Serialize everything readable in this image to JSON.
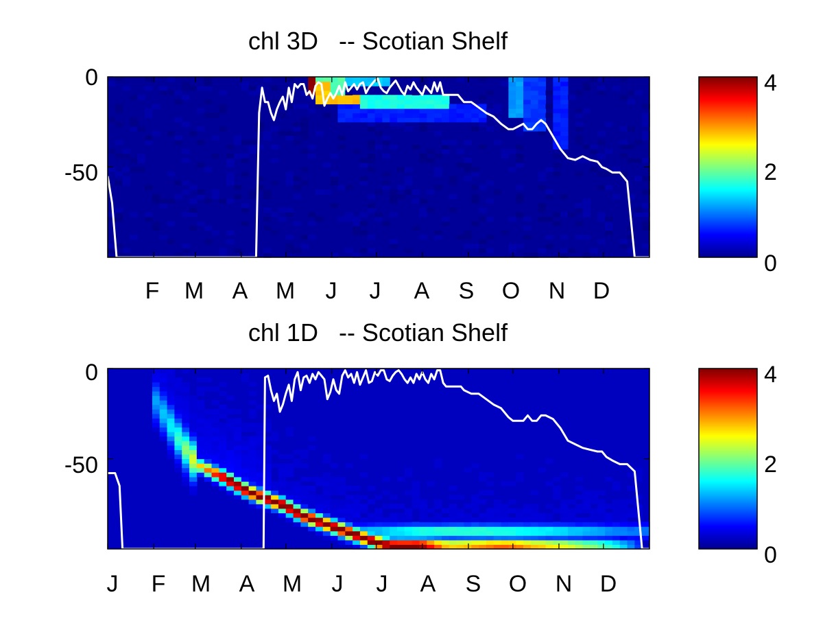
{
  "charts": [
    {
      "type": "heatmap",
      "title": "chl 3D   -- Scotian Shelf",
      "y_ticks": [
        "0",
        "-50"
      ],
      "x_tick_labels": [
        "F",
        "M",
        "A",
        "M",
        "J",
        "J",
        "A",
        "S",
        "O",
        "N",
        "D"
      ],
      "colorbar_ticks": [
        "0",
        "2",
        "4"
      ]
    },
    {
      "type": "heatmap",
      "title": "chl 1D   -- Scotian Shelf",
      "y_ticks": [
        "0",
        "-50"
      ],
      "x_tick_labels": [
        "J",
        "F",
        "M",
        "A",
        "M",
        "J",
        "J",
        "A",
        "S",
        "O",
        "N",
        "D"
      ],
      "colorbar_ticks": [
        "0",
        "2",
        "4"
      ]
    }
  ],
  "chart_data": [
    {
      "type": "heatmap",
      "title": "chl 3D   -- Scotian Shelf",
      "xlabel": "",
      "ylabel": "",
      "xlim_days": [
        0,
        365
      ],
      "ylim_depth": [
        -100,
        0
      ],
      "colorbar": {
        "colormap": "jet",
        "range": [
          0,
          4
        ],
        "ticks": [
          0,
          2,
          4
        ]
      },
      "x_tick_labels": [
        "F",
        "M",
        "A",
        "M",
        "J",
        "J",
        "A",
        "S",
        "O",
        "N",
        "D"
      ],
      "x_tick_days": [
        31,
        59,
        90,
        120,
        151,
        181,
        212,
        243,
        273,
        304,
        334
      ],
      "y_ticks": [
        0,
        -50
      ],
      "background_value": 0.1,
      "hotspots": [
        {
          "day": [
            133,
            142
          ],
          "depth": [
            -10,
            0
          ],
          "value": 4
        },
        {
          "day": [
            142,
            150
          ],
          "depth": [
            -14,
            -3
          ],
          "value": 2.7
        },
        {
          "day": [
            150,
            172
          ],
          "depth": [
            -16,
            -10
          ],
          "value": 2.8
        },
        {
          "day": [
            135,
            158
          ],
          "depth": [
            -10,
            0
          ],
          "value": 1.8
        },
        {
          "day": [
            158,
            190
          ],
          "depth": [
            -6,
            0
          ],
          "value": 1.3
        },
        {
          "day": [
            170,
            230
          ],
          "depth": [
            -18,
            -11
          ],
          "value": 1.6
        },
        {
          "day": [
            155,
            255
          ],
          "depth": [
            -24,
            -16
          ],
          "value": 0.6
        },
        {
          "day": [
            270,
            282
          ],
          "depth": [
            -22,
            0
          ],
          "value": 1.1
        },
        {
          "day": [
            282,
            295
          ],
          "depth": [
            -30,
            0
          ],
          "value": 0.7
        },
        {
          "day": [
            300,
            312
          ],
          "depth": [
            -40,
            0
          ],
          "value": 0.6
        }
      ],
      "mixed_layer_depth": {
        "day": [
          0,
          3,
          6,
          100,
          102,
          104,
          106,
          108,
          110,
          112,
          114,
          116,
          118,
          120,
          122,
          124,
          126,
          128,
          130,
          132,
          134,
          136,
          138,
          140,
          142,
          144,
          146,
          148,
          150,
          152,
          154,
          156,
          158,
          160,
          162,
          164,
          166,
          168,
          170,
          172,
          174,
          176,
          178,
          180,
          182,
          184,
          186,
          188,
          190,
          192,
          194,
          196,
          198,
          200,
          202,
          204,
          206,
          208,
          210,
          212,
          214,
          216,
          218,
          220,
          222,
          224,
          226,
          228,
          230,
          232,
          234,
          236,
          238,
          240,
          245,
          250,
          255,
          260,
          265,
          270,
          273,
          280,
          283,
          286,
          289,
          292,
          295,
          300,
          305,
          310,
          315,
          320,
          325,
          330,
          333,
          336,
          340,
          345,
          350,
          355,
          360,
          362,
          365
        ],
        "depth": [
          -55,
          -70,
          -100,
          -100,
          -20,
          -6,
          -14,
          -14,
          -20,
          -24,
          -18,
          -14,
          -11,
          -18,
          -6,
          -14,
          -4,
          -6,
          -4,
          -4,
          -10,
          -8,
          -12,
          -5,
          -3,
          -4,
          -16,
          -12,
          -9,
          -12,
          -9,
          -5,
          -10,
          -3,
          -8,
          -6,
          -4,
          -7,
          -4,
          -3,
          -9,
          -6,
          -4,
          -2,
          -1,
          -6,
          -8,
          -9,
          -6,
          -4,
          -2,
          -5,
          -8,
          -10,
          -5,
          -7,
          -3,
          -6,
          -8,
          -10,
          -5,
          -7,
          -9,
          -3,
          -8,
          -3,
          -10,
          -10,
          -10,
          -10,
          -10,
          -10,
          -12,
          -14,
          -14,
          -17,
          -20,
          -22,
          -26,
          -29,
          -29,
          -26,
          -29,
          -29,
          -26,
          -24,
          -26,
          -33,
          -40,
          -45,
          -46,
          -44,
          -46,
          -47,
          -50,
          -51,
          -53,
          -53,
          -58,
          -100,
          -100,
          -100,
          -100
        ]
      }
    },
    {
      "type": "heatmap",
      "title": "chl 1D   -- Scotian Shelf",
      "xlabel": "",
      "ylabel": "",
      "xlim_days": [
        0,
        365
      ],
      "ylim_depth": [
        -100,
        0
      ],
      "colorbar": {
        "colormap": "jet",
        "range": [
          0,
          4
        ],
        "ticks": [
          0,
          2,
          4
        ]
      },
      "x_tick_labels": [
        "J",
        "F",
        "M",
        "A",
        "M",
        "J",
        "J",
        "A",
        "S",
        "O",
        "N",
        "D"
      ],
      "x_tick_days": [
        0,
        31,
        59,
        90,
        120,
        151,
        181,
        212,
        243,
        273,
        304,
        334
      ],
      "y_ticks": [
        0,
        -50
      ],
      "background_value": 0.25,
      "max_band": {
        "day": [
          30,
          40,
          50,
          60,
          70,
          80,
          90,
          100,
          110,
          120,
          130,
          140,
          150,
          160,
          170,
          180,
          190,
          200,
          210,
          220,
          230,
          240,
          250,
          260,
          270,
          280,
          290,
          300,
          310,
          320,
          330,
          340,
          350,
          358
        ],
        "depth": [
          -15,
          -28,
          -42,
          -53,
          -57,
          -61,
          -66,
          -70,
          -73,
          -76,
          -81,
          -84,
          -87,
          -90,
          -93,
          -96,
          -98,
          -98,
          -98,
          -98,
          -98,
          -98,
          -98,
          -98,
          -98,
          -98,
          -98,
          -98,
          -98,
          -98,
          -98,
          -98,
          -98,
          -98
        ],
        "value": [
          0.8,
          1.1,
          1.6,
          2.3,
          3.0,
          4.0,
          4.0,
          4.0,
          4.0,
          4.0,
          4.0,
          4.0,
          4.0,
          4.0,
          4.0,
          4.0,
          4.0,
          4.0,
          4.0,
          3.2,
          2.5,
          2.6,
          2.8,
          3.0,
          3.0,
          2.8,
          2.6,
          2.4,
          2.3,
          2.0,
          1.8,
          1.5,
          1.0,
          0.5
        ]
      },
      "secondary_band": {
        "day": [
          170,
          190,
          210,
          230,
          250,
          270,
          290,
          310,
          330,
          350
        ],
        "depth": [
          -90,
          -90,
          -90,
          -90,
          -90,
          -90,
          -90,
          -90,
          -90,
          -90
        ],
        "value": [
          1.0,
          1.2,
          1.5,
          1.6,
          1.6,
          1.5,
          1.4,
          1.2,
          1.0,
          0.8
        ]
      },
      "mixed_layer_depth": {
        "day": [
          0,
          5,
          8,
          10,
          105,
          106,
          108,
          110,
          112,
          114,
          116,
          118,
          120,
          122,
          124,
          126,
          128,
          130,
          132,
          134,
          136,
          138,
          140,
          142,
          144,
          146,
          148,
          150,
          152,
          154,
          156,
          158,
          160,
          162,
          164,
          166,
          168,
          170,
          172,
          174,
          176,
          178,
          180,
          182,
          184,
          186,
          188,
          190,
          192,
          194,
          196,
          198,
          200,
          202,
          204,
          206,
          208,
          210,
          212,
          214,
          216,
          218,
          220,
          222,
          224,
          226,
          228,
          230,
          232,
          234,
          236,
          238,
          240,
          245,
          250,
          255,
          260,
          265,
          270,
          273,
          280,
          283,
          286,
          289,
          292,
          295,
          300,
          305,
          310,
          315,
          320,
          325,
          330,
          333,
          336,
          340,
          345,
          350,
          355,
          360,
          362,
          365
        ],
        "depth": [
          -58,
          -58,
          -65,
          -100,
          -100,
          -5,
          -4,
          -12,
          -18,
          -14,
          -24,
          -20,
          -14,
          -9,
          -18,
          -6,
          -2,
          -12,
          -5,
          -4,
          -8,
          -3,
          -6,
          -2,
          -4,
          -6,
          -17,
          -13,
          -6,
          -12,
          -14,
          -4,
          -1,
          -5,
          -3,
          -8,
          -2,
          -9,
          -5,
          -1,
          -8,
          -7,
          -2,
          -4,
          -1,
          -1,
          -6,
          -7,
          -4,
          -2,
          -1,
          -3,
          -6,
          -8,
          -5,
          -8,
          -3,
          -6,
          -2,
          -6,
          -8,
          -3,
          -6,
          -1,
          -1,
          -8,
          -10,
          -10,
          -10,
          -10,
          -10,
          -10,
          -12,
          -14,
          -14,
          -17,
          -20,
          -22,
          -27,
          -29,
          -29,
          -26,
          -29,
          -29,
          -26,
          -26,
          -28,
          -33,
          -40,
          -42,
          -44,
          -45,
          -46,
          -46,
          -49,
          -51,
          -53,
          -53,
          -57,
          -100,
          -100,
          -100,
          -100
        ]
      }
    }
  ]
}
